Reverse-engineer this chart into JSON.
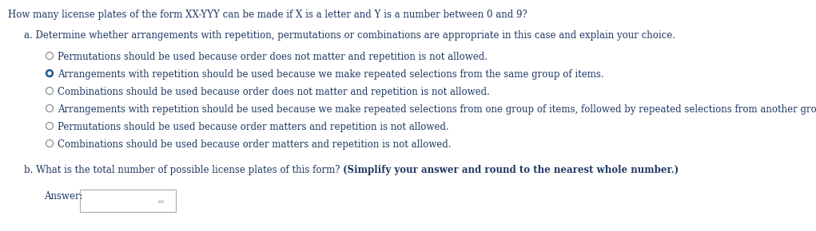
{
  "background_color": "#ffffff",
  "title_text": "How many license plates of the form XX-YYY can be made if X is a letter and Y is a number between 0 and 9?",
  "title_color": "#1f3864",
  "title_fontsize": 8.5,
  "part_a_label": "a. Determine whether arrangements with repetition, permutations or combinations are appropriate in this case and explain your choice.",
  "part_a_color": "#1f3864",
  "part_a_fontsize": 8.5,
  "options": [
    {
      "text": "Permutations should be used because order does not matter and repetition is not allowed.",
      "selected": false
    },
    {
      "text": "Arrangements with repetition should be used because we make repeated selections from the same group of items.",
      "selected": true
    },
    {
      "text": "Combinations should be used because order does not matter and repetition is not allowed.",
      "selected": false
    },
    {
      "text": "Arrangements with repetition should be used because we make repeated selections from one group of items, followed by repeated selections from another group of items.",
      "selected": false
    },
    {
      "text": "Permutations should be used because order matters and repetition is not allowed.",
      "selected": false
    },
    {
      "text": "Combinations should be used because order matters and repetition is not allowed.",
      "selected": false
    }
  ],
  "option_text_color": "#1f3864",
  "option_fontsize": 8.5,
  "radio_unselected_edgecolor": "#7f7f7f",
  "radio_selected_facecolor": "#1f5c99",
  "radio_selected_edgecolor": "#1f5c99",
  "part_b_normal": "b. What is the total number of possible license plates of this form? ",
  "part_b_bold": "(Simplify your answer and round to the nearest whole number.)",
  "part_b_color": "#1f3864",
  "part_b_fontsize": 8.5,
  "answer_label": "Answer:",
  "answer_label_color": "#1f3864",
  "answer_fontsize": 8.5
}
